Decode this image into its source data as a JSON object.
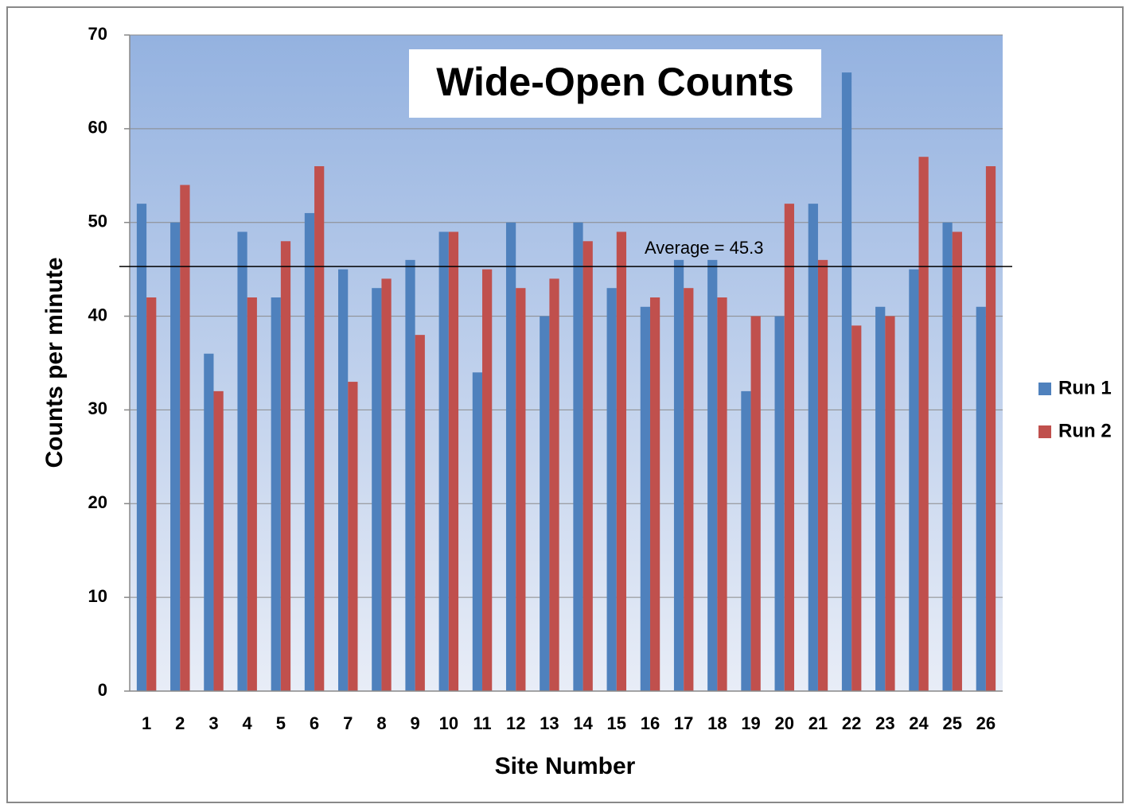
{
  "chart_data": {
    "type": "bar",
    "title": "Wide-Open Counts",
    "x_label": "Site Number",
    "y_label": "Counts per minute",
    "categories": [
      "1",
      "2",
      "3",
      "4",
      "5",
      "6",
      "7",
      "8",
      "9",
      "10",
      "11",
      "12",
      "13",
      "14",
      "15",
      "16",
      "17",
      "18",
      "19",
      "20",
      "21",
      "22",
      "23",
      "24",
      "25",
      "26"
    ],
    "series": [
      {
        "name": "Run 1",
        "color": "#4f81bd",
        "values": [
          52,
          50,
          36,
          49,
          42,
          51,
          45,
          43,
          46,
          49,
          34,
          50,
          40,
          50,
          43,
          41,
          46,
          46,
          32,
          40,
          52,
          66,
          41,
          45,
          50,
          41
        ]
      },
      {
        "name": "Run 2",
        "color": "#c0504d",
        "values": [
          42,
          54,
          32,
          42,
          48,
          56,
          33,
          44,
          38,
          49,
          45,
          43,
          44,
          48,
          49,
          42,
          43,
          42,
          40,
          52,
          46,
          39,
          40,
          57,
          49,
          56
        ]
      }
    ],
    "ylim": [
      0,
      70
    ],
    "yticks": [
      0,
      10,
      20,
      30,
      40,
      50,
      60,
      70
    ],
    "grid": true,
    "legend": "right",
    "reference_line": {
      "value": 45.3,
      "label": "Average = 45.3"
    }
  }
}
